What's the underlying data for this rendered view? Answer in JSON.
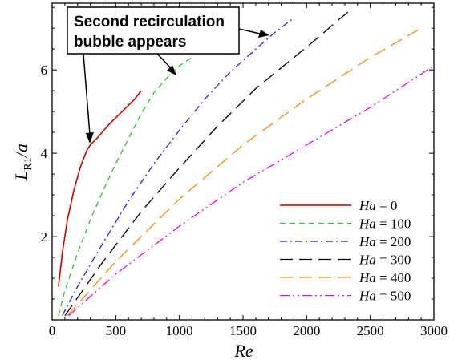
{
  "chart_data": {
    "type": "line",
    "xlabel": "Re",
    "ylabel": {
      "main": "L",
      "sub": "R1",
      "suffix": "/a"
    },
    "xlim": [
      0,
      3000
    ],
    "ylim": [
      0,
      7.6
    ],
    "xticks": [
      0,
      500,
      1000,
      1500,
      2000,
      2500,
      3000
    ],
    "yticks": [
      2,
      4,
      6
    ],
    "grid": false,
    "legend_position": "lower-right",
    "annotation": {
      "lines": [
        "Second recirculation",
        "bubble appears"
      ]
    },
    "series": [
      {
        "name": "Ha = 0",
        "ha": "0",
        "color": "#cc0000",
        "dash": "solid",
        "points": [
          [
            50,
            0.8
          ],
          [
            80,
            1.6
          ],
          [
            120,
            2.4
          ],
          [
            170,
            3.1
          ],
          [
            220,
            3.65
          ],
          [
            270,
            4.05
          ],
          [
            300,
            4.2
          ],
          [
            350,
            4.35
          ],
          [
            450,
            4.7
          ],
          [
            550,
            5.0
          ],
          [
            650,
            5.3
          ],
          [
            700,
            5.5
          ]
        ]
      },
      {
        "name": "Ha = 100",
        "ha": "100",
        "color": "#22cc22",
        "dash": "dashed",
        "points": [
          [
            50,
            0.1
          ],
          [
            100,
            0.7
          ],
          [
            200,
            1.6
          ],
          [
            300,
            2.4
          ],
          [
            400,
            3.1
          ],
          [
            500,
            3.75
          ],
          [
            600,
            4.35
          ],
          [
            700,
            4.95
          ],
          [
            800,
            5.45
          ],
          [
            900,
            5.8
          ],
          [
            1000,
            6.1
          ],
          [
            1100,
            6.3
          ]
        ]
      },
      {
        "name": "Ha = 200",
        "ha": "200",
        "color": "#2222dd",
        "dash": "dashdot",
        "points": [
          [
            80,
            0.1
          ],
          [
            200,
            0.8
          ],
          [
            400,
            1.85
          ],
          [
            600,
            2.85
          ],
          [
            800,
            3.75
          ],
          [
            1000,
            4.55
          ],
          [
            1200,
            5.3
          ],
          [
            1400,
            5.95
          ],
          [
            1600,
            6.5
          ],
          [
            1750,
            6.9
          ],
          [
            1900,
            7.25
          ]
        ]
      },
      {
        "name": "Ha = 300",
        "ha": "300",
        "color": "#000000",
        "dash": "longdash",
        "points": [
          [
            100,
            0.1
          ],
          [
            400,
            1.4
          ],
          [
            700,
            2.6
          ],
          [
            1000,
            3.65
          ],
          [
            1300,
            4.65
          ],
          [
            1600,
            5.55
          ],
          [
            1900,
            6.3
          ],
          [
            2100,
            6.8
          ],
          [
            2250,
            7.2
          ],
          [
            2350,
            7.45
          ]
        ]
      },
      {
        "name": "Ha = 400",
        "ha": "400",
        "color": "#ff8800",
        "dash": "longdash",
        "points": [
          [
            120,
            0.1
          ],
          [
            500,
            1.4
          ],
          [
            1000,
            2.9
          ],
          [
            1500,
            4.2
          ],
          [
            2000,
            5.3
          ],
          [
            2500,
            6.3
          ],
          [
            2900,
            7.0
          ]
        ]
      },
      {
        "name": "Ha = 500",
        "ha": "500",
        "color": "#ee00ee",
        "dash": "dashdotdot",
        "points": [
          [
            130,
            0.1
          ],
          [
            500,
            1.1
          ],
          [
            1000,
            2.25
          ],
          [
            1500,
            3.3
          ],
          [
            2000,
            4.2
          ],
          [
            2500,
            5.1
          ],
          [
            3000,
            6.1
          ]
        ]
      }
    ]
  }
}
